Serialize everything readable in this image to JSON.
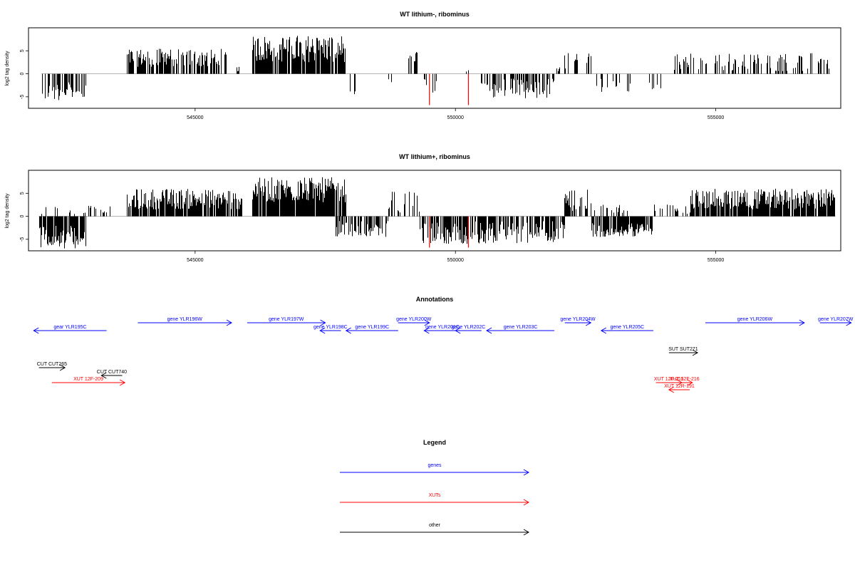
{
  "chart_data": [
    {
      "type": "bar",
      "title": "WT lithium-, ribominus",
      "ylabel": "log2 tag density",
      "xlim": [
        541800,
        557400
      ],
      "ylim": [
        -7.5,
        10
      ],
      "xticks": [
        545000,
        550000,
        555000
      ],
      "xtick_labels": [
        "545000",
        "550000",
        "555000"
      ],
      "yticks": [
        -5,
        0,
        5
      ],
      "ytick_labels": [
        "-5",
        "0",
        "5"
      ],
      "grid": false,
      "highlight_color": "#ff0000",
      "bar_color": "#000000",
      "highlights": [
        {
          "x": 549500,
          "value": -6.8
        },
        {
          "x": 550250,
          "value": -6.8
        }
      ],
      "segments": [
        {
          "start": 542050,
          "end": 542900,
          "sign": -1,
          "min": 1.8,
          "max": 5.8,
          "density": 0.6
        },
        {
          "start": 543700,
          "end": 545600,
          "sign": 1,
          "min": 1.5,
          "max": 5.5,
          "density": 0.7
        },
        {
          "start": 545800,
          "end": 545850,
          "sign": 1,
          "min": 0.5,
          "max": 1.5,
          "density": 1.0
        },
        {
          "start": 546100,
          "end": 547900,
          "sign": 1,
          "min": 2.5,
          "max": 8.5,
          "density": 0.85
        },
        {
          "start": 547950,
          "end": 548100,
          "sign": -1,
          "min": 2.5,
          "max": 4.5,
          "density": 0.3
        },
        {
          "start": 548300,
          "end": 548800,
          "sign": -1,
          "min": 0.5,
          "max": 3.0,
          "density": 0.1
        },
        {
          "start": 549100,
          "end": 549300,
          "sign": 1,
          "min": 1.5,
          "max": 5.0,
          "density": 0.5
        },
        {
          "start": 549350,
          "end": 549450,
          "sign": -1,
          "min": 1.0,
          "max": 3.0,
          "density": 0.3
        },
        {
          "start": 549550,
          "end": 549800,
          "sign": -1,
          "min": 1.5,
          "max": 5.0,
          "density": 0.4
        },
        {
          "start": 550200,
          "end": 550400,
          "sign": 1,
          "min": 0.5,
          "max": 1.0,
          "density": 0.1
        },
        {
          "start": 550500,
          "end": 551900,
          "sign": -1,
          "min": 1.0,
          "max": 5.5,
          "density": 0.5
        },
        {
          "start": 551900,
          "end": 552000,
          "sign": 1,
          "min": 0.5,
          "max": 1.5,
          "density": 0.3
        },
        {
          "start": 552100,
          "end": 552600,
          "sign": 1,
          "min": 1.0,
          "max": 4.5,
          "density": 0.3
        },
        {
          "start": 552700,
          "end": 553500,
          "sign": -1,
          "min": 1.0,
          "max": 4.0,
          "density": 0.3
        },
        {
          "start": 553700,
          "end": 554000,
          "sign": -1,
          "min": 1.0,
          "max": 3.5,
          "density": 0.2
        },
        {
          "start": 554200,
          "end": 557200,
          "sign": 1,
          "min": 0.5,
          "max": 4.5,
          "density": 0.3
        }
      ]
    },
    {
      "type": "bar",
      "title": "WT lithium+, ribominus",
      "ylabel": "log2 tag density",
      "xlim": [
        541800,
        557400
      ],
      "ylim": [
        -7.5,
        10
      ],
      "xticks": [
        545000,
        550000,
        555000
      ],
      "xtick_labels": [
        "545000",
        "550000",
        "555000"
      ],
      "yticks": [
        -5,
        0,
        5
      ],
      "ytick_labels": [
        "-5",
        "0",
        "5"
      ],
      "grid": false,
      "highlight_color": "#ff0000",
      "bar_color": "#000000",
      "highlights": [
        {
          "x": 549500,
          "value": -6.8
        },
        {
          "x": 550250,
          "value": -6.8
        }
      ],
      "segments": [
        {
          "start": 542000,
          "end": 542900,
          "sign": -1,
          "min": 2.0,
          "max": 7.0,
          "density": 0.85
        },
        {
          "start": 542000,
          "end": 543400,
          "sign": 1,
          "min": 0.5,
          "max": 2.5,
          "density": 0.15
        },
        {
          "start": 543700,
          "end": 545900,
          "sign": 1,
          "min": 1.5,
          "max": 6.0,
          "density": 0.85
        },
        {
          "start": 546100,
          "end": 547900,
          "sign": 1,
          "min": 3.0,
          "max": 8.5,
          "density": 0.9
        },
        {
          "start": 547700,
          "end": 548700,
          "sign": -1,
          "min": 1.0,
          "max": 4.5,
          "density": 0.6
        },
        {
          "start": 548700,
          "end": 549300,
          "sign": 1,
          "min": 0.5,
          "max": 5.5,
          "density": 0.4
        },
        {
          "start": 549300,
          "end": 552100,
          "sign": -1,
          "min": 1.0,
          "max": 6.0,
          "density": 0.75
        },
        {
          "start": 552100,
          "end": 552600,
          "sign": 1,
          "min": 1.0,
          "max": 6.0,
          "density": 0.7
        },
        {
          "start": 552600,
          "end": 553800,
          "sign": -1,
          "min": 1.5,
          "max": 4.5,
          "density": 0.8
        },
        {
          "start": 552600,
          "end": 553300,
          "sign": 1,
          "min": 0.5,
          "max": 2.5,
          "density": 0.3
        },
        {
          "start": 553800,
          "end": 554500,
          "sign": 1,
          "min": 0.5,
          "max": 3.0,
          "density": 0.4
        },
        {
          "start": 554500,
          "end": 557300,
          "sign": 1,
          "min": 1.5,
          "max": 6.0,
          "density": 0.9
        }
      ]
    },
    {
      "type": "other",
      "title": "Annotations",
      "xlim": [
        541800,
        557400
      ],
      "features": [
        {
          "label": "gear YLR195C",
          "start": 541900,
          "end": 543300,
          "strand": "-",
          "row": 1,
          "kind": "genes"
        },
        {
          "label": "gene YLR196W",
          "start": 543900,
          "end": 545700,
          "strand": "+",
          "row": 0,
          "kind": "genes"
        },
        {
          "label": "gene YLR197W",
          "start": 546000,
          "end": 547500,
          "strand": "+",
          "row": 0,
          "kind": "genes"
        },
        {
          "label": "gene YLR198C",
          "start": 547400,
          "end": 547800,
          "strand": "-",
          "row": 1,
          "kind": "genes"
        },
        {
          "label": "gene YLR199C",
          "start": 547900,
          "end": 548900,
          "strand": "-",
          "row": 1,
          "kind": "genes"
        },
        {
          "label": "gene YLR200W",
          "start": 548900,
          "end": 549500,
          "strand": "+",
          "row": 0,
          "kind": "genes"
        },
        {
          "label": "gene YLR201C",
          "start": 549400,
          "end": 550100,
          "strand": "-",
          "row": 1,
          "kind": "genes"
        },
        {
          "label": "gene YLR202C",
          "start": 550000,
          "end": 550500,
          "strand": "-",
          "row": 1,
          "kind": "genes"
        },
        {
          "label": "gene YLR203C",
          "start": 550600,
          "end": 551900,
          "strand": "-",
          "row": 1,
          "kind": "genes"
        },
        {
          "label": "gene YLR204W",
          "start": 552100,
          "end": 552600,
          "strand": "+",
          "row": 0,
          "kind": "genes"
        },
        {
          "label": "gene YLR205C",
          "start": 552800,
          "end": 553800,
          "strand": "-",
          "row": 1,
          "kind": "genes"
        },
        {
          "label": "gene YLR206W",
          "start": 554800,
          "end": 556700,
          "strand": "+",
          "row": 0,
          "kind": "genes"
        },
        {
          "label": "gene YLR207W",
          "start": 557000,
          "end": 557600,
          "strand": "+",
          "row": 0,
          "kind": "genes"
        },
        {
          "label": "SUT SUT271",
          "start": 554100,
          "end": 554650,
          "strand": "+",
          "row": 3,
          "kind": "other"
        },
        {
          "label": "CUT CUT265",
          "start": 542000,
          "end": 542500,
          "strand": "+",
          "row": 4,
          "kind": "other"
        },
        {
          "label": "CUT CUT740",
          "start": 543200,
          "end": 543600,
          "strand": "-",
          "row": 5,
          "kind": "other"
        },
        {
          "label": "XUT 12F-209",
          "start": 542250,
          "end": 543650,
          "strand": "+",
          "row": 6,
          "kind": "XUTs"
        },
        {
          "label": "XUT 12F-215",
          "start": 553850,
          "end": 554350,
          "strand": "+",
          "row": 6,
          "kind": "XUTs"
        },
        {
          "label": "XUT 12F-216",
          "start": 554250,
          "end": 554550,
          "strand": "+",
          "row": 6,
          "kind": "XUTs"
        },
        {
          "label": "XUT 12R-191",
          "start": 554100,
          "end": 554500,
          "strand": "-",
          "row": 7,
          "kind": "XUTs"
        }
      ]
    },
    {
      "type": "legend",
      "title": "Legend",
      "entries": [
        {
          "label": "genes",
          "color": "#0000ff"
        },
        {
          "label": "XUTs",
          "color": "#ff0000"
        },
        {
          "label": "other",
          "color": "#000000"
        }
      ]
    }
  ]
}
